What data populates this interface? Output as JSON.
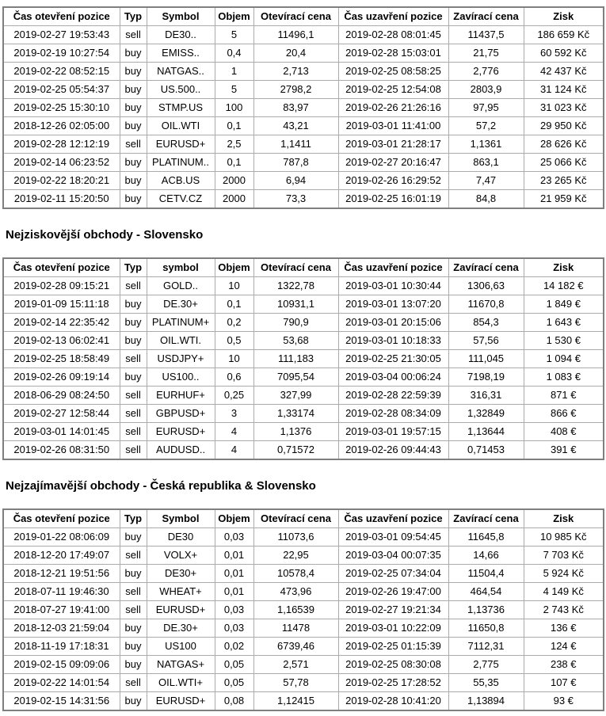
{
  "sections": [
    {
      "name": "nejziskovejsi-obchody-ceska-republika",
      "columns": [
        "Čas otevření pozice",
        "Typ",
        "Symbol",
        "Objem",
        "Otevírací cena",
        "Čas uzavření pozice",
        "Zavírací cena",
        "Zisk"
      ],
      "rows": [
        [
          "2019-02-27 19:53:43",
          "sell",
          "DE30..",
          "5",
          "11496,1",
          "2019-02-28 08:01:45",
          "11437,5",
          "186 659 Kč"
        ],
        [
          "2019-02-19 10:27:54",
          "buy",
          "EMISS..",
          "0,4",
          "20,4",
          "2019-02-28 15:03:01",
          "21,75",
          "60 592 Kč"
        ],
        [
          "2019-02-22 08:52:15",
          "buy",
          "NATGAS..",
          "1",
          "2,713",
          "2019-02-25 08:58:25",
          "2,776",
          "42 437 Kč"
        ],
        [
          "2019-02-25 05:54:37",
          "buy",
          "US.500..",
          "5",
          "2798,2",
          "2019-02-25 12:54:08",
          "2803,9",
          "31 124 Kč"
        ],
        [
          "2019-02-25 15:30:10",
          "buy",
          "STMP.US",
          "100",
          "83,97",
          "2019-02-26 21:26:16",
          "97,95",
          "31 023 Kč"
        ],
        [
          "2018-12-26 02:05:00",
          "buy",
          "OIL.WTI",
          "0,1",
          "43,21",
          "2019-03-01 11:41:00",
          "57,2",
          "29 950 Kč"
        ],
        [
          "2019-02-28 12:12:19",
          "sell",
          "EURUSD+",
          "2,5",
          "1,1411",
          "2019-03-01 21:28:17",
          "1,1361",
          "28 626 Kč"
        ],
        [
          "2019-02-14 06:23:52",
          "buy",
          "PLATINUM..",
          "0,1",
          "787,8",
          "2019-02-27 20:16:47",
          "863,1",
          "25 066 Kč"
        ],
        [
          "2019-02-22 18:20:21",
          "buy",
          "ACB.US",
          "2000",
          "6,94",
          "2019-02-26 16:29:52",
          "7,47",
          "23 265 Kč"
        ],
        [
          "2019-02-11 15:20:50",
          "buy",
          "CETV.CZ",
          "2000",
          "73,3",
          "2019-02-25 16:01:19",
          "84,8",
          "21 959 Kč"
        ]
      ]
    },
    {
      "name": "nejziskovejsi-obchody-slovensko",
      "heading": "Nejziskovější obchody - Slovensko",
      "columns": [
        "Čas otevření pozice",
        "Typ",
        "symbol",
        "Objem",
        "Otevírací cena",
        "Čas uzavření pozice",
        "Zavírací cena",
        "Zisk"
      ],
      "rows": [
        [
          "2019-02-28 09:15:21",
          "sell",
          "GOLD..",
          "10",
          "1322,78",
          "2019-03-01 10:30:44",
          "1306,63",
          "14 182 €"
        ],
        [
          "2019-01-09 15:11:18",
          "buy",
          "DE.30+",
          "0,1",
          "10931,1",
          "2019-03-01 13:07:20",
          "11670,8",
          "1 849 €"
        ],
        [
          "2019-02-14 22:35:42",
          "buy",
          "PLATINUM+",
          "0,2",
          "790,9",
          "2019-03-01 20:15:06",
          "854,3",
          "1 643 €"
        ],
        [
          "2019-02-13 06:02:41",
          "buy",
          "OIL.WTI.",
          "0,5",
          "53,68",
          "2019-03-01 10:18:33",
          "57,56",
          "1 530 €"
        ],
        [
          "2019-02-25 18:58:49",
          "sell",
          "USDJPY+",
          "10",
          "111,183",
          "2019-02-25 21:30:05",
          "111,045",
          "1 094 €"
        ],
        [
          "2019-02-26 09:19:14",
          "buy",
          "US100..",
          "0,6",
          "7095,54",
          "2019-03-04 00:06:24",
          "7198,19",
          "1 083 €"
        ],
        [
          "2018-06-29 08:24:50",
          "sell",
          "EURHUF+",
          "0,25",
          "327,99",
          "2019-02-28 22:59:39",
          "316,31",
          "871 €"
        ],
        [
          "2019-02-27 12:58:44",
          "sell",
          "GBPUSD+",
          "3",
          "1,33174",
          "2019-02-28 08:34:09",
          "1,32849",
          "866 €"
        ],
        [
          "2019-03-01 14:01:45",
          "sell",
          "EURUSD+",
          "4",
          "1,1376",
          "2019-03-01 19:57:15",
          "1,13644",
          "408 €"
        ],
        [
          "2019-02-26 08:31:50",
          "sell",
          "AUDUSD..",
          "4",
          "0,71572",
          "2019-02-26 09:44:43",
          "0,71453",
          "391 €"
        ]
      ]
    },
    {
      "name": "nejzajimavejsi-obchody",
      "heading": "Nejzajímavější obchody - Česká republika & Slovensko",
      "columns": [
        "Čas otevření pozice",
        "Typ",
        "Symbol",
        "Objem",
        "Otevírací cena",
        "Čas uzavření pozice",
        "Zavírací cena",
        "Zisk"
      ],
      "rows": [
        [
          "2019-01-22 08:06:09",
          "buy",
          "DE30",
          "0,03",
          "11073,6",
          "2019-03-01 09:54:45",
          "11645,8",
          "10 985 Kč"
        ],
        [
          "2018-12-20 17:49:07",
          "sell",
          "VOLX+",
          "0,01",
          "22,95",
          "2019-03-04 00:07:35",
          "14,66",
          "7 703 Kč"
        ],
        [
          "2018-12-21 19:51:56",
          "buy",
          "DE30+",
          "0,01",
          "10578,4",
          "2019-02-25 07:34:04",
          "11504,4",
          "5 924 Kč"
        ],
        [
          "2018-07-11 19:46:30",
          "sell",
          "WHEAT+",
          "0,01",
          "473,96",
          "2019-02-26 19:47:00",
          "464,54",
          "4 149 Kč"
        ],
        [
          "2018-07-27 19:41:00",
          "sell",
          "EURUSD+",
          "0,03",
          "1,16539",
          "2019-02-27 19:21:34",
          "1,13736",
          "2 743 Kč"
        ],
        [
          "2018-12-03 21:59:04",
          "buy",
          "DE.30+",
          "0,03",
          "11478",
          "2019-03-01 10:22:09",
          "11650,8",
          "136 €"
        ],
        [
          "2018-11-19 17:18:31",
          "buy",
          "US100",
          "0,02",
          "6739,46",
          "2019-02-25 01:15:39",
          "7112,31",
          "124 €"
        ],
        [
          "2019-02-15 09:09:06",
          "buy",
          "NATGAS+",
          "0,05",
          "2,571",
          "2019-02-25 08:30:08",
          "2,775",
          "238 €"
        ],
        [
          "2019-02-22 14:01:54",
          "sell",
          "OIL.WTI+",
          "0,05",
          "57,78",
          "2019-02-25 17:28:52",
          "55,35",
          "107 €"
        ],
        [
          "2019-02-15 14:31:56",
          "buy",
          "EURUSD+",
          "0,08",
          "1,12415",
          "2019-02-28 10:41:20",
          "1,13894",
          "93 €"
        ]
      ]
    }
  ]
}
